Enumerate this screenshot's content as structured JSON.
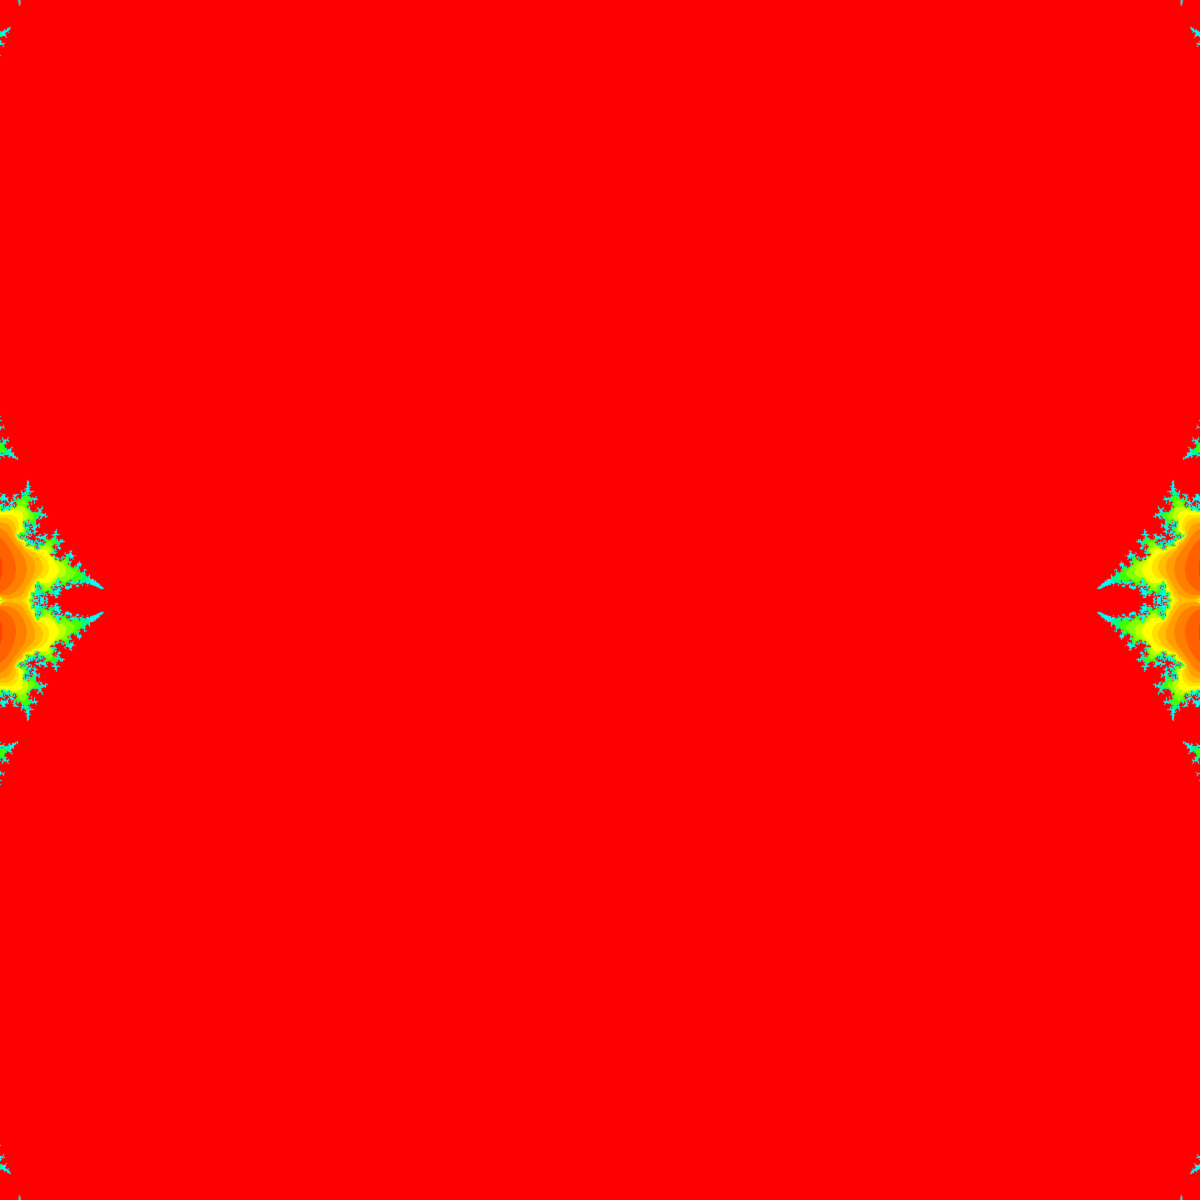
{
  "image": {
    "subject": "fractal-rendering",
    "background_color": "#ff0000",
    "palette": {
      "interior": "#ff0000",
      "bands": [
        "#00ffff",
        "#00ff80",
        "#40ff00",
        "#80ff00",
        "#c0ff00",
        "#ffff00",
        "#ffe000",
        "#ffc000",
        "#ffa000",
        "#ff8000",
        "#ff6000",
        "#ff4000",
        "#ff2000",
        "#ff1000",
        "#2000ff",
        "#0000ff",
        "#0020ff",
        "#0040ff",
        "#0060ff",
        "#0080ff"
      ]
    }
  }
}
